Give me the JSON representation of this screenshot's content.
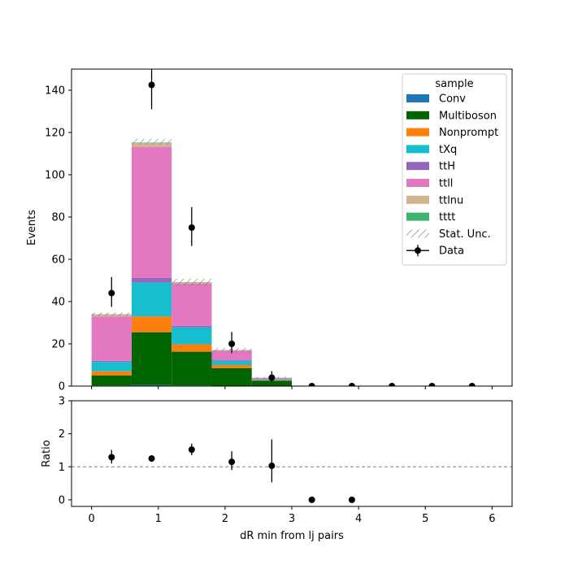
{
  "chart_data": {
    "type": "bar",
    "subtype": "stacked-histogram-with-data-points-and-ratio",
    "xlabel": "dR min from lj pairs",
    "bins": [
      [
        0.0,
        0.6
      ],
      [
        0.6,
        1.2
      ],
      [
        1.2,
        1.8
      ],
      [
        1.8,
        2.4
      ],
      [
        2.4,
        3.0
      ],
      [
        3.0,
        3.6
      ],
      [
        3.6,
        4.2
      ],
      [
        4.2,
        4.8
      ],
      [
        4.8,
        5.4
      ],
      [
        5.4,
        6.0
      ]
    ],
    "xlim": [
      -0.3,
      6.3
    ],
    "xticks": [
      0,
      1,
      2,
      3,
      4,
      5,
      6
    ],
    "main_panel": {
      "ylabel": "Events",
      "ylim": [
        0,
        150
      ],
      "yticks": [
        0,
        20,
        40,
        60,
        80,
        100,
        120,
        140
      ],
      "series": [
        {
          "name": "Conv",
          "color": "#1f77b4",
          "values": [
            0.3,
            0.5,
            0.3,
            0.2,
            0.1,
            0,
            0,
            0,
            0,
            0
          ]
        },
        {
          "name": "Multiboson",
          "color": "#006400",
          "values": [
            4.7,
            25.0,
            16.0,
            8.3,
            2.4,
            0.1,
            0,
            0,
            0,
            0
          ]
        },
        {
          "name": "Nonprompt",
          "color": "#ff7f0e",
          "values": [
            2.0,
            7.5,
            3.5,
            1.5,
            0.3,
            0,
            0,
            0,
            0,
            0
          ]
        },
        {
          "name": "tXq",
          "color": "#17becf",
          "values": [
            4.5,
            16.0,
            8.0,
            2.0,
            0.4,
            0,
            0,
            0,
            0,
            0
          ]
        },
        {
          "name": "ttH",
          "color": "#9467bd",
          "values": [
            0.5,
            2.2,
            0.7,
            0.3,
            0.1,
            0,
            0,
            0,
            0,
            0
          ]
        },
        {
          "name": "ttll",
          "color": "#e377c2",
          "values": [
            21.0,
            62.0,
            20.0,
            4.5,
            0.6,
            0.1,
            0,
            0,
            0,
            0
          ]
        },
        {
          "name": "ttlnu",
          "color": "#d2b48c",
          "values": [
            0.9,
            1.8,
            0.6,
            0.2,
            0.1,
            0,
            0,
            0,
            0,
            0
          ]
        },
        {
          "name": "tttt",
          "color": "#3cb371",
          "values": [
            0.1,
            0.2,
            0.1,
            0.1,
            0.0,
            0,
            0,
            0,
            0,
            0
          ]
        }
      ],
      "stat_unc": {
        "name": "Stat. Unc.",
        "up": [
          34.8,
          117.0,
          50.8,
          18.1,
          4.4,
          0.3,
          0,
          0,
          0,
          0
        ],
        "down": [
          33.2,
          114.4,
          47.6,
          16.1,
          3.6,
          0.1,
          0,
          0,
          0,
          0
        ]
      },
      "data": {
        "name": "Data",
        "x": [
          0.3,
          0.9,
          1.5,
          2.1,
          2.7,
          3.3,
          3.9,
          4.5,
          5.1,
          5.7
        ],
        "y": [
          44,
          142.5,
          75,
          20,
          4,
          0,
          0,
          0,
          0,
          0
        ],
        "yerr_up": [
          7.6,
          12.0,
          9.7,
          5.6,
          3.1,
          0,
          0,
          0,
          0,
          0
        ],
        "yerr_down": [
          6.5,
          11.5,
          8.7,
          4.4,
          1.9,
          0,
          0,
          0,
          0,
          0
        ]
      },
      "legend_title": "sample",
      "legend_loc": "upper right"
    },
    "ratio_panel": {
      "ylabel": "Ratio",
      "ylim": [
        -0.2,
        3
      ],
      "yticks": [
        0,
        1,
        2,
        3
      ],
      "reference_line": 1,
      "x": [
        0.3,
        0.9,
        1.5,
        2.1,
        2.7,
        3.3,
        3.9
      ],
      "y": [
        1.29,
        1.25,
        1.52,
        1.15,
        1.03,
        0,
        0
      ],
      "yerr_up": [
        0.22,
        0.1,
        0.18,
        0.32,
        0.8,
        0,
        0
      ],
      "yerr_down": [
        0.19,
        0.1,
        0.17,
        0.25,
        0.5,
        0,
        0
      ]
    }
  }
}
